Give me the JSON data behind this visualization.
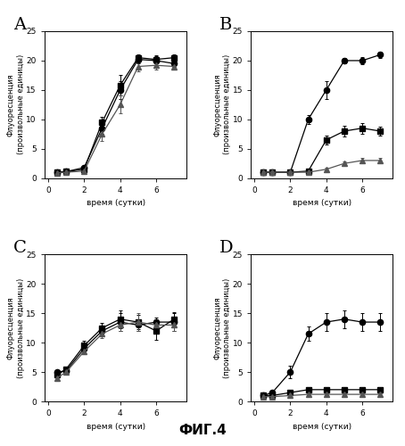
{
  "title": "ФИГ.4",
  "panels": [
    "A",
    "B",
    "C",
    "D"
  ],
  "xlabel": "время (сутки)",
  "ylabel": "Флуоресценция\n(произвольные единицы)",
  "xlim": [
    -0.2,
    7.7
  ],
  "ylim": [
    0,
    25
  ],
  "xticks": [
    0,
    2,
    4,
    6
  ],
  "yticks": [
    0,
    5,
    10,
    15,
    20,
    25
  ],
  "A": {
    "series": [
      {
        "x": [
          0.5,
          1,
          2,
          3,
          4,
          5,
          6,
          7
        ],
        "y": [
          1.0,
          1.1,
          1.8,
          8.5,
          15.0,
          20.2,
          20.0,
          19.5
        ],
        "yerr": [
          0.1,
          0.1,
          0.2,
          1.0,
          1.5,
          0.7,
          0.8,
          0.6
        ],
        "marker": "o",
        "color": "#000000",
        "ms": 4.5
      },
      {
        "x": [
          0.5,
          1,
          2,
          3,
          4,
          5,
          6,
          7
        ],
        "y": [
          1.0,
          1.1,
          1.5,
          9.5,
          15.8,
          20.5,
          20.2,
          20.5
        ],
        "yerr": [
          0.1,
          0.1,
          0.2,
          1.0,
          1.8,
          0.6,
          0.7,
          0.5
        ],
        "marker": "s",
        "color": "#000000",
        "ms": 4.5
      },
      {
        "x": [
          0.5,
          1,
          2,
          3,
          4,
          5,
          6,
          7
        ],
        "y": [
          0.9,
          1.0,
          1.2,
          7.5,
          12.5,
          19.0,
          19.2,
          19.0
        ],
        "yerr": [
          0.1,
          0.1,
          0.2,
          1.2,
          1.5,
          0.8,
          0.7,
          0.6
        ],
        "marker": "^",
        "color": "#555555",
        "ms": 4.5
      }
    ]
  },
  "B": {
    "series": [
      {
        "x": [
          0.5,
          1,
          2,
          3,
          4,
          5,
          6,
          7
        ],
        "y": [
          1.0,
          1.0,
          1.0,
          10.0,
          15.0,
          20.0,
          20.0,
          21.0
        ],
        "yerr": [
          0.1,
          0.1,
          0.1,
          0.8,
          1.5,
          0.5,
          0.6,
          0.5
        ],
        "marker": "o",
        "color": "#000000",
        "ms": 4.5
      },
      {
        "x": [
          0.5,
          1,
          2,
          3,
          4,
          5,
          6,
          7
        ],
        "y": [
          1.0,
          1.0,
          1.0,
          1.2,
          6.5,
          8.0,
          8.5,
          8.0
        ],
        "yerr": [
          0.1,
          0.1,
          0.1,
          0.2,
          0.8,
          0.9,
          0.9,
          0.8
        ],
        "marker": "s",
        "color": "#000000",
        "ms": 4.5
      },
      {
        "x": [
          0.5,
          1,
          2,
          3,
          4,
          5,
          6,
          7
        ],
        "y": [
          1.0,
          1.0,
          1.0,
          1.0,
          1.5,
          2.5,
          3.0,
          3.0
        ],
        "yerr": [
          0.1,
          0.1,
          0.1,
          0.2,
          0.3,
          0.4,
          0.4,
          0.4
        ],
        "marker": "^",
        "color": "#555555",
        "ms": 4.5
      }
    ]
  },
  "C": {
    "series": [
      {
        "x": [
          0.5,
          1,
          2,
          3,
          4,
          5,
          6,
          7
        ],
        "y": [
          5.0,
          5.2,
          9.0,
          12.0,
          13.5,
          13.0,
          13.5,
          13.5
        ],
        "yerr": [
          0.3,
          0.3,
          0.6,
          0.8,
          1.5,
          1.0,
          0.8,
          1.5
        ],
        "marker": "o",
        "color": "#000000",
        "ms": 4.5
      },
      {
        "x": [
          0.5,
          1,
          2,
          3,
          4,
          5,
          6,
          7
        ],
        "y": [
          4.5,
          5.5,
          9.5,
          12.5,
          14.0,
          13.5,
          12.0,
          14.0
        ],
        "yerr": [
          0.3,
          0.3,
          0.8,
          0.9,
          1.5,
          1.2,
          1.5,
          1.2
        ],
        "marker": "s",
        "color": "#000000",
        "ms": 4.5
      },
      {
        "x": [
          0.5,
          1,
          2,
          3,
          4,
          5,
          6,
          7
        ],
        "y": [
          4.0,
          5.0,
          8.5,
          11.5,
          13.0,
          13.5,
          13.0,
          13.0
        ],
        "yerr": [
          0.3,
          0.3,
          0.5,
          0.7,
          1.0,
          1.5,
          1.0,
          1.0
        ],
        "marker": "^",
        "color": "#555555",
        "ms": 4.5
      }
    ]
  },
  "D": {
    "series": [
      {
        "x": [
          0.5,
          1,
          2,
          3,
          4,
          5,
          6,
          7
        ],
        "y": [
          1.0,
          1.5,
          5.0,
          11.5,
          13.5,
          14.0,
          13.5,
          13.5
        ],
        "yerr": [
          0.2,
          0.3,
          1.0,
          1.2,
          1.5,
          1.5,
          1.5,
          1.5
        ],
        "marker": "o",
        "color": "#000000",
        "ms": 4.5
      },
      {
        "x": [
          0.5,
          1,
          2,
          3,
          4,
          5,
          6,
          7
        ],
        "y": [
          1.0,
          1.0,
          1.5,
          2.0,
          2.0,
          2.0,
          2.0,
          2.0
        ],
        "yerr": [
          0.1,
          0.1,
          0.2,
          0.3,
          0.3,
          0.3,
          0.3,
          0.3
        ],
        "marker": "s",
        "color": "#000000",
        "ms": 4.5
      },
      {
        "x": [
          0.5,
          1,
          2,
          3,
          4,
          5,
          6,
          7
        ],
        "y": [
          0.8,
          0.8,
          1.0,
          1.2,
          1.2,
          1.2,
          1.2,
          1.2
        ],
        "yerr": [
          0.1,
          0.1,
          0.1,
          0.1,
          0.2,
          0.2,
          0.2,
          0.2
        ],
        "marker": "^",
        "color": "#555555",
        "ms": 4.5
      }
    ]
  }
}
